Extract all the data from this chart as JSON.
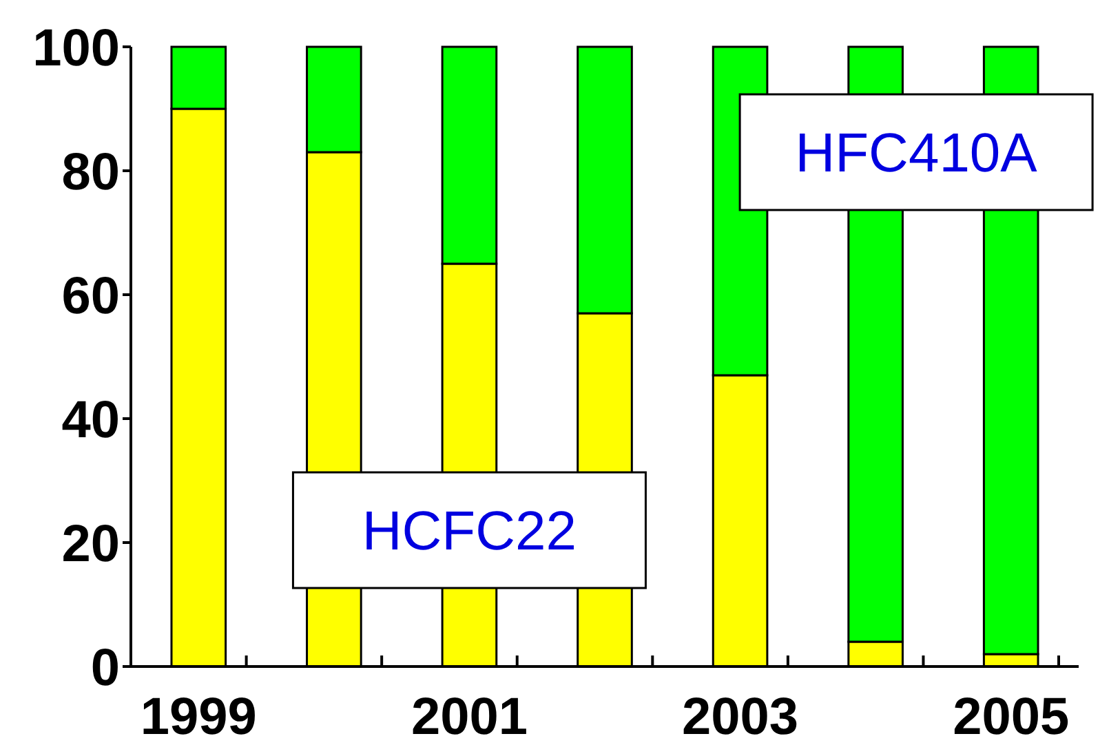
{
  "chart_data": {
    "type": "bar",
    "stacked": true,
    "categories": [
      "1999",
      null,
      "2001",
      null,
      "2003",
      null,
      "2005"
    ],
    "series": [
      {
        "name": "HCFC22",
        "color": "#ffff00",
        "values": [
          90,
          83,
          65,
          57,
          47,
          4,
          2
        ]
      },
      {
        "name": "HFC410A",
        "color": "#00ff00",
        "values": [
          10,
          17,
          35,
          43,
          53,
          96,
          98
        ]
      }
    ],
    "ylim": [
      0,
      100
    ],
    "yticks": [
      0,
      20,
      40,
      60,
      80,
      100
    ],
    "grid": false,
    "legend": false
  }
}
